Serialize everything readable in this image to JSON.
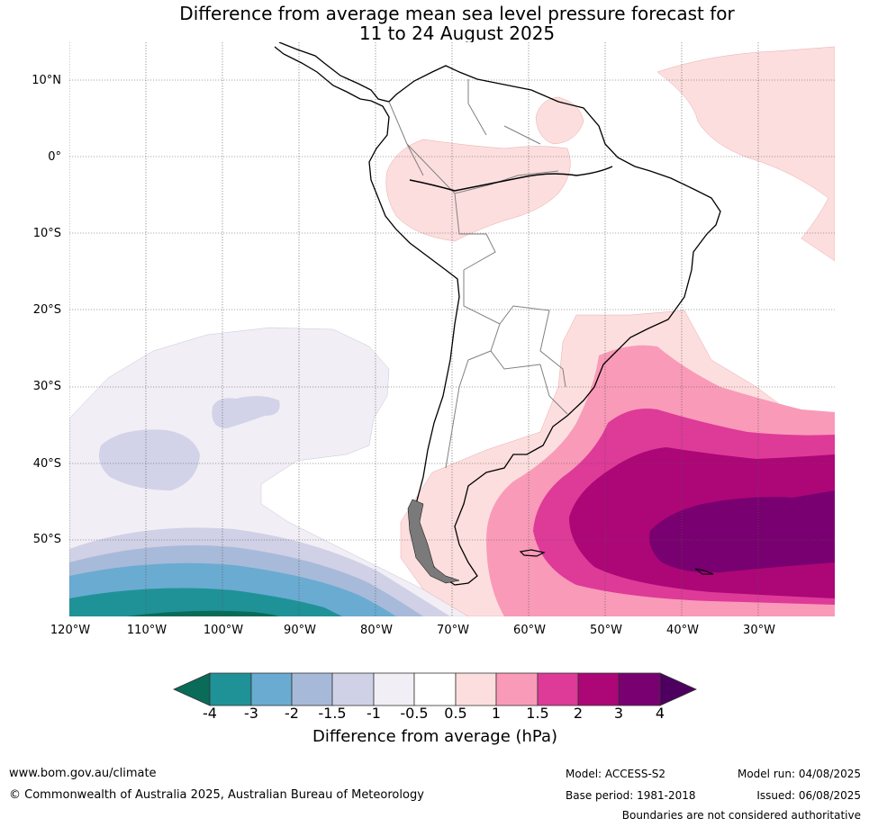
{
  "title": {
    "line1": "Difference from average mean sea level pressure forecast for",
    "line2": "11 to 24 August 2025"
  },
  "map": {
    "lat_labels": [
      "10°N",
      "0°",
      "10°S",
      "20°S",
      "30°S",
      "40°S",
      "50°S"
    ],
    "lon_labels": [
      "120°W",
      "110°W",
      "100°W",
      "90°W",
      "80°W",
      "70°W",
      "60°W",
      "50°W",
      "40°W",
      "30°W"
    ],
    "gridlines": "dotted",
    "lon_range": [
      -120,
      -21
    ],
    "lat_range": [
      -60,
      15
    ]
  },
  "colorbar": {
    "title": "Difference from average (hPa)",
    "ticks": [
      "-4",
      "-3",
      "-2",
      "-1.5",
      "-1",
      "-0.5",
      "0.5",
      "1",
      "1.5",
      "2",
      "3",
      "4"
    ],
    "colors": {
      "below_-4": "#0a6b58",
      "-4_-3": "#1f9298",
      "-3_-2": "#6aabd1",
      "-2_-1.5": "#a6b9d9",
      "-1.5_-1": "#cfd1e6",
      "-1_-0.5": "#f1eef5",
      "-0.5_0.5": "#ffffff",
      "0.5_1": "#fddede",
      "1_1.5": "#f99ab8",
      "1.5_2": "#de3a98",
      "2_3": "#ad0677",
      "3_4": "#790070",
      "above_4": "#4e0060"
    }
  },
  "footer": {
    "website": "www.bom.gov.au/climate",
    "copyright": "© Commonwealth of Australia 2025, Australian Bureau of Meteorology",
    "model": "Model: ACCESS-S2",
    "base_period": "Base period: 1981-2018",
    "model_run": "Model run: 04/08/2025",
    "issued": "Issued: 06/08/2025",
    "disclaimer": "Boundaries are not considered authoritative"
  }
}
